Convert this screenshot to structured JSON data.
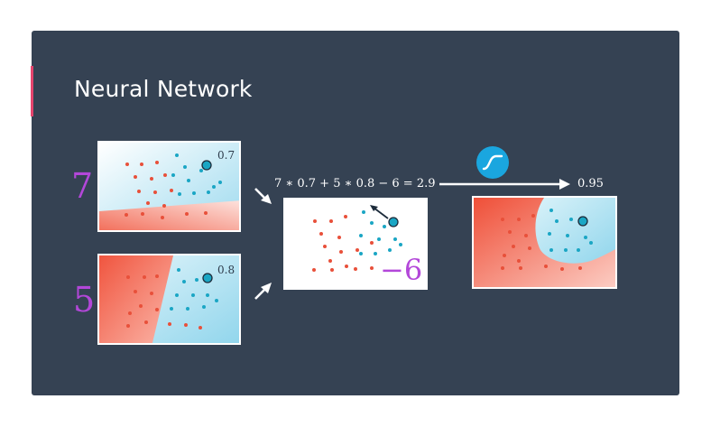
{
  "slide": {
    "title": "Neural Network"
  },
  "inputs": [
    {
      "weight": "7",
      "probability": "0.7"
    },
    {
      "weight": "5",
      "probability": "0.8"
    }
  ],
  "combined": {
    "equation": "7 ∗ 0.7 + 5 ∗ 0.8 − 6 = 2.9",
    "bias": "−6"
  },
  "activation": {
    "icon": "sigmoid-icon",
    "output": "0.95"
  },
  "colors": {
    "background": "#354253",
    "accent": "#e5446d",
    "weight_text": "#b347d9",
    "red_point": "#e8503a",
    "blue_point": "#1aa6c4",
    "sigmoid_badge": "#1aa6df"
  }
}
